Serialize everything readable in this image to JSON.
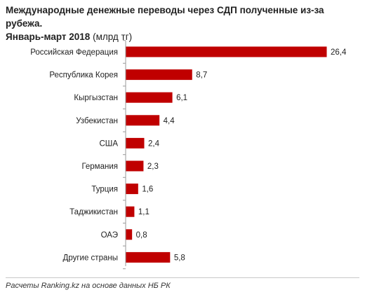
{
  "header": {
    "title_line1": "Международные денежные переводы через СДП полученные из-за рубежа.",
    "title_line2": "Январь-март 2018",
    "unit": "(млрд тг)"
  },
  "footer": {
    "source": "Расчеты Ranking.kz на основе данных НБ РК"
  },
  "colors": {
    "bar": "#c00000"
  },
  "chart_data": {
    "type": "bar",
    "orientation": "horizontal",
    "title": "Международные денежные переводы через СДП полученные из-за рубежа. Январь-март 2018",
    "unit": "млрд тг",
    "categories": [
      "Российская Федерация",
      "Республика Корея",
      "Кыргызстан",
      "Узбекистан",
      "США",
      "Германия",
      "Турция",
      "Таджикистан",
      "ОАЭ",
      "Другие страны"
    ],
    "values": [
      26.4,
      8.7,
      6.1,
      4.4,
      2.4,
      2.3,
      1.6,
      1.1,
      0.8,
      5.8
    ],
    "value_labels": [
      "26,4",
      "8,7",
      "6,1",
      "4,4",
      "2,4",
      "2,3",
      "1,6",
      "1,1",
      "0,8",
      "5,8"
    ],
    "xlim": [
      0,
      26.4
    ],
    "grid": false,
    "legend": "none"
  }
}
